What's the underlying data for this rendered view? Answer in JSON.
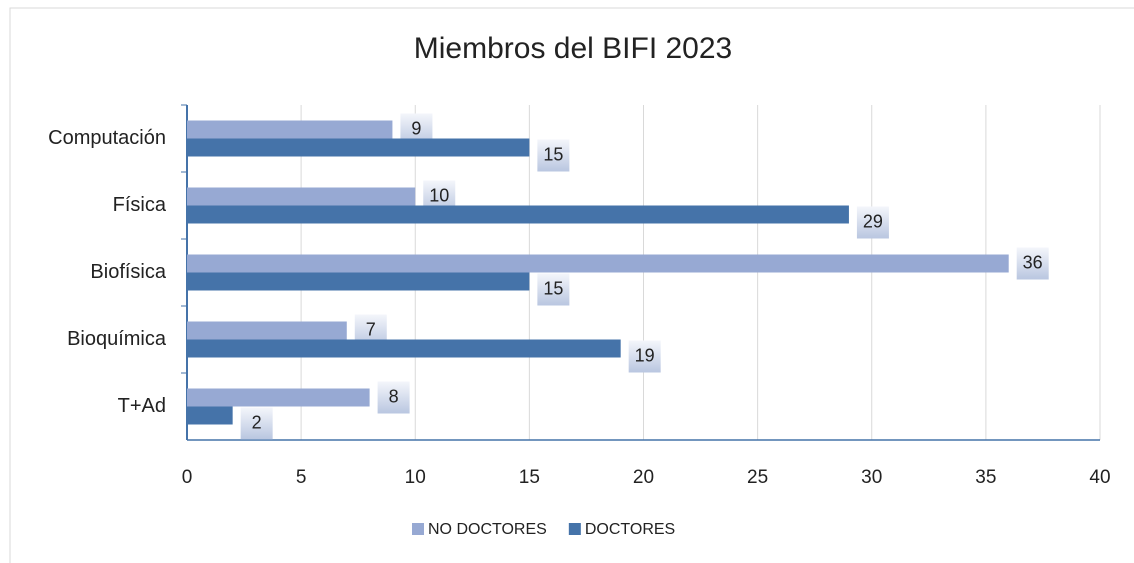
{
  "chart_data": {
    "type": "bar",
    "orientation": "horizontal",
    "title": "Miembros del BIFI 2023",
    "categories": [
      "Computación",
      "Física",
      "Biofísica",
      "Bioquímica",
      "T+Ad"
    ],
    "series": [
      {
        "name": "NO DOCTORES",
        "color": "#97a9d3",
        "values": [
          9,
          10,
          36,
          7,
          8
        ]
      },
      {
        "name": "DOCTORES",
        "color": "#4573a9",
        "values": [
          15,
          29,
          15,
          19,
          2
        ]
      }
    ],
    "xlim": [
      0,
      40
    ],
    "xticks": [
      0,
      5,
      10,
      15,
      20,
      25,
      30,
      35,
      40
    ],
    "grid": true,
    "legend": "bottom"
  }
}
